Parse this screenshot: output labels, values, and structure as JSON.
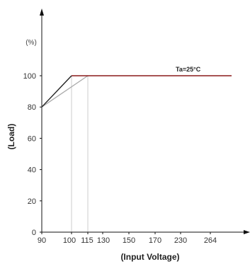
{
  "chart_data": {
    "type": "line",
    "ylabel": "(Load)",
    "yunit": "(%)",
    "xlabel": "(Input Voltage)",
    "annotation": "Ta=25°C",
    "x_ticks": [
      "90",
      "100",
      "115",
      "130",
      "150",
      "170",
      "230",
      "264"
    ],
    "y_ticks": [
      "0",
      "20",
      "40",
      "60",
      "80",
      "100"
    ],
    "ylim": [
      0,
      120
    ],
    "series": [
      {
        "x": [
          "90",
          "100",
          "264"
        ],
        "y": [
          80,
          100,
          100
        ],
        "color": "#222222"
      },
      {
        "x": [
          "90",
          "115",
          "264"
        ],
        "y": [
          80,
          100,
          100
        ],
        "color": "#aaaaaa"
      }
    ],
    "reference_lines": [
      {
        "x": "100",
        "color": "#cccccc"
      },
      {
        "x": "115",
        "color": "#cccccc"
      }
    ],
    "flat_segment_color": "#8b1a1a",
    "grid": false
  }
}
